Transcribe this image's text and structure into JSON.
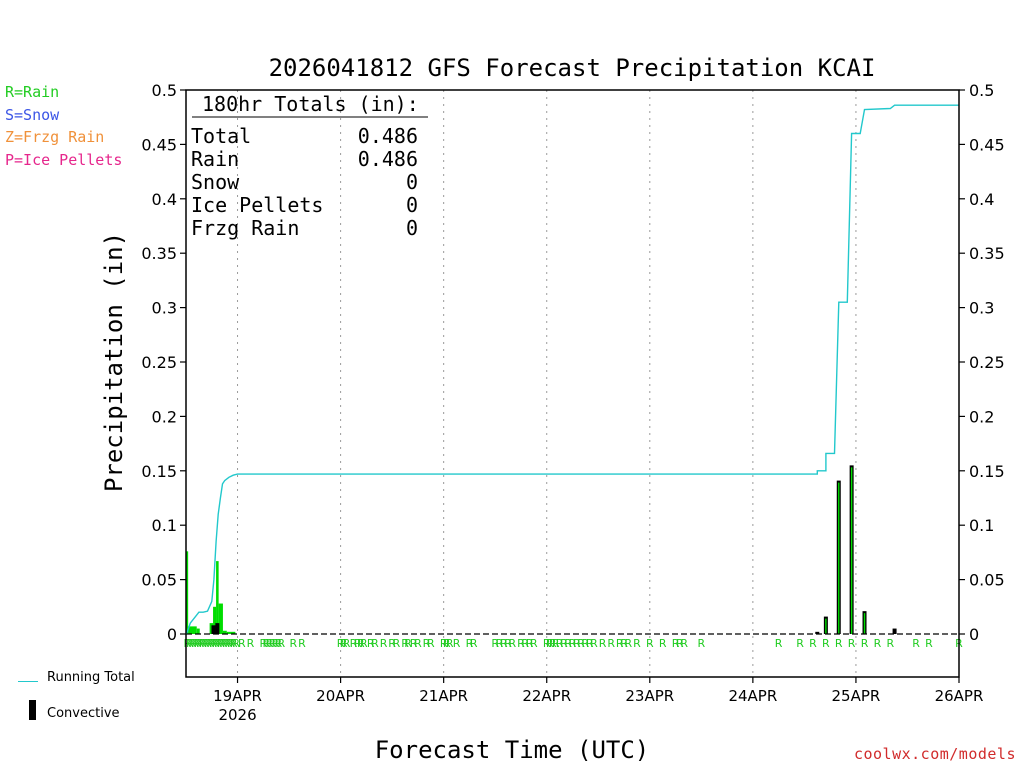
{
  "legend_codes": [
    {
      "text": "R=Rain",
      "color": "#22cc22"
    },
    {
      "text": "S=Snow",
      "color": "#3b55e6"
    },
    {
      "text": "Z=Frzg Rain",
      "color": "#f0913a"
    },
    {
      "text": "P=Ice Pellets",
      "color": "#e6268c"
    }
  ],
  "series_legend": {
    "running_total": "Running Total",
    "convective": "Convective"
  },
  "credit": "coolwx.com/models",
  "colors": {
    "running_total": "#22c8cc",
    "rain": "#00dd00",
    "convective": "#000000",
    "rain_marker": "#22cc22"
  },
  "chart_data": {
    "type": "bar",
    "title": "2026041812 GFS Forecast Precipitation KCAI",
    "xlabel": "Forecast Time (UTC)",
    "ylabel": "Precipitation (in)",
    "ylim": [
      0,
      0.5
    ],
    "y_ticks": [
      "0",
      "0.05",
      "0.1",
      "0.15",
      "0.2",
      "0.25",
      "0.3",
      "0.35",
      "0.4",
      "0.45",
      "0.5"
    ],
    "x_range_hours": [
      0,
      180
    ],
    "x_tick_labels": [
      {
        "hour": 12,
        "label": "19APR",
        "sub": "2026"
      },
      {
        "hour": 36,
        "label": "20APR",
        "sub": ""
      },
      {
        "hour": 60,
        "label": "21APR",
        "sub": ""
      },
      {
        "hour": 84,
        "label": "22APR",
        "sub": ""
      },
      {
        "hour": 108,
        "label": "23APR",
        "sub": ""
      },
      {
        "hour": 132,
        "label": "24APR",
        "sub": ""
      },
      {
        "hour": 156,
        "label": "25APR",
        "sub": ""
      },
      {
        "hour": 180,
        "label": "26APR",
        "sub": ""
      }
    ],
    "totals": {
      "header": "180hr Totals (in):",
      "rows": [
        {
          "label": "Total",
          "value": "0.486"
        },
        {
          "label": "Rain",
          "value": "0.486"
        },
        {
          "label": "Snow",
          "value": "0"
        },
        {
          "label": "Ice Pellets",
          "value": "0"
        },
        {
          "label": "Frzg Rain",
          "value": "0"
        }
      ]
    },
    "running_total": [
      [
        0,
        0.0
      ],
      [
        0.3,
        0.002
      ],
      [
        1,
        0.01
      ],
      [
        2,
        0.015
      ],
      [
        3,
        0.02
      ],
      [
        4,
        0.02
      ],
      [
        5,
        0.021
      ],
      [
        6,
        0.03
      ],
      [
        6.5,
        0.05
      ],
      [
        7,
        0.085
      ],
      [
        7.5,
        0.11
      ],
      [
        8,
        0.125
      ],
      [
        8.5,
        0.138
      ],
      [
        9,
        0.141
      ],
      [
        10,
        0.144
      ],
      [
        11,
        0.146
      ],
      [
        12,
        0.147
      ],
      [
        20,
        0.147
      ],
      [
        60,
        0.147
      ],
      [
        100,
        0.147
      ],
      [
        144,
        0.147
      ],
      [
        147,
        0.147
      ],
      [
        147,
        0.15
      ],
      [
        149,
        0.15
      ],
      [
        149,
        0.166
      ],
      [
        151,
        0.166
      ],
      [
        152,
        0.305
      ],
      [
        154,
        0.305
      ],
      [
        155,
        0.46
      ],
      [
        157,
        0.46
      ],
      [
        158,
        0.482
      ],
      [
        164,
        0.483
      ],
      [
        165,
        0.486
      ],
      [
        180,
        0.486
      ]
    ],
    "rain_bars": [
      {
        "x0": 0,
        "x1": 0.5,
        "value": 0.076
      },
      {
        "x0": 0.5,
        "x1": 2.5,
        "value": 0.007
      },
      {
        "x0": 2.5,
        "x1": 3.2,
        "value": 0.005
      },
      {
        "x0": 5.5,
        "x1": 6.3,
        "value": 0.01
      },
      {
        "x0": 6.3,
        "x1": 7.0,
        "value": 0.025
      },
      {
        "x0": 7.0,
        "x1": 7.6,
        "value": 0.067
      },
      {
        "x0": 7.6,
        "x1": 8.6,
        "value": 0.028
      },
      {
        "x0": 8.6,
        "x1": 9.5,
        "value": 0.003
      },
      {
        "x0": 9.5,
        "x1": 11.5,
        "value": 0.002
      }
    ],
    "convective_bars": [
      {
        "x": 6.4,
        "value": 0.008
      },
      {
        "x": 7.3,
        "value": 0.01
      },
      {
        "x": 147.0,
        "value": 0.002
      },
      {
        "x": 149.0,
        "value": 0.016
      },
      {
        "x": 152.0,
        "value": 0.141
      },
      {
        "x": 155.0,
        "value": 0.155
      },
      {
        "x": 158.0,
        "value": 0.021
      },
      {
        "x": 165.0,
        "value": 0.005
      }
    ],
    "rain_marker_hours": [
      0.3,
      0.9,
      1.5,
      2.1,
      2.7,
      3.3,
      3.9,
      4.5,
      5.1,
      5.7,
      6.3,
      6.9,
      7.5,
      8.1,
      8.7,
      9.3,
      9.9,
      10.5,
      11.1,
      11.7,
      13.0,
      15.0,
      18.0,
      18.7,
      19.4,
      20.1,
      20.8,
      21.5,
      22.2,
      25.0,
      27.0,
      36.0,
      36.7,
      37.4,
      39.0,
      40.0,
      40.7,
      41.4,
      43.0,
      44.0,
      46.0,
      48.0,
      49.0,
      51.0,
      51.7,
      53.0,
      54.0,
      56.0,
      57.0,
      60.0,
      60.7,
      61.4,
      63.0,
      66.0,
      67.0,
      72.0,
      73.0,
      74.0,
      75.0,
      76.0,
      78.0,
      79.0,
      80.0,
      81.0,
      84.0,
      84.7,
      85.4,
      86.1,
      87.0,
      88.0,
      89.0,
      90.0,
      91.0,
      92.0,
      93.0,
      94.0,
      95.0,
      97.0,
      99.0,
      101.0,
      102.0,
      103.0,
      105.0,
      108.0,
      111.0,
      114.0,
      115.0,
      116.0,
      120.0,
      138.0,
      143.0,
      146.0,
      149.0,
      152.0,
      155.0,
      158.0,
      161.0,
      164.0,
      170.0,
      173.0,
      180.0
    ]
  }
}
